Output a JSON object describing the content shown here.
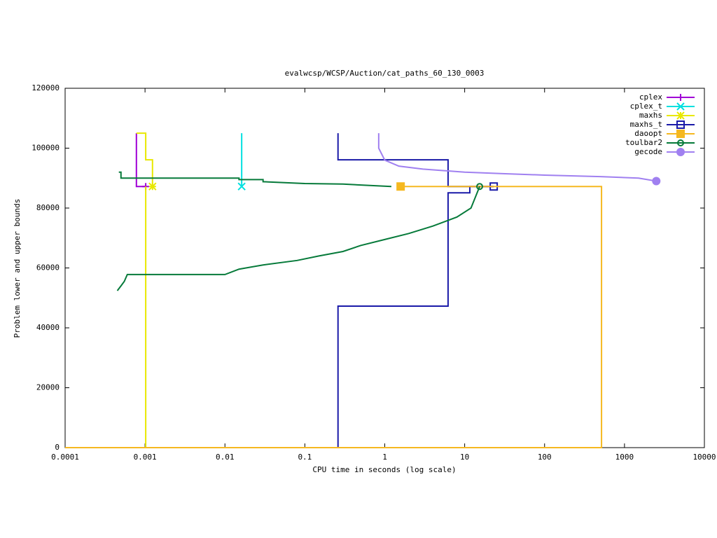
{
  "chart_data": {
    "type": "line",
    "title": "evalwcsp/WCSP/Auction/cat_paths_60_130_0003",
    "x_label": "CPU time in seconds (log scale)",
    "y_label": "Problem lower and upper bounds",
    "xlog": true,
    "xlim": [
      0.0001,
      10000
    ],
    "xticks": [
      0.0001,
      0.001,
      0.01,
      0.1,
      1,
      10,
      100,
      1000,
      10000
    ],
    "ylim": [
      0,
      120000
    ],
    "yticks": [
      0,
      20000,
      40000,
      60000,
      80000,
      100000,
      120000
    ],
    "legend": "top-right",
    "series": [
      {
        "name": "cplex",
        "color": "#a000d6",
        "marker": "plus",
        "x": [
          0.00078,
          0.00078,
          0.00102
        ],
        "values": [
          105000,
          87200,
          87200
        ]
      },
      {
        "name": "cplex_t",
        "color": "#00e0e0",
        "marker": "cross",
        "x": [
          0.0162,
          0.0162
        ],
        "values": [
          105000,
          87200
        ]
      },
      {
        "name": "maxhs",
        "color": "#e8e800",
        "marker": "star",
        "x": [
          0.0001,
          0.00102,
          0.00102,
          null,
          0.00078,
          0.00102,
          0.00102,
          0.00124,
          0.00124
        ],
        "values": [
          0,
          0,
          87200,
          null,
          105000,
          105000,
          96100,
          96100,
          87200
        ]
      },
      {
        "name": "maxhs_t",
        "color": "#1a1aa8",
        "marker": "square-open",
        "x": [
          0.26,
          0.26,
          6.2,
          6.2,
          23.1,
          null,
          0.26,
          0.26,
          6.2,
          6.2,
          11.6,
          11.6,
          23.1
        ],
        "values": [
          105000,
          96100,
          96100,
          87200,
          87200,
          null,
          0,
          47250,
          47250,
          85100,
          85100,
          87200,
          87200
        ]
      },
      {
        "name": "daoopt",
        "color": "#f5b820",
        "marker": "square-filled",
        "x": [
          0.0001,
          516,
          516,
          1.58
        ],
        "values": [
          0,
          0,
          87200,
          87200
        ]
      },
      {
        "name": "toulbar2",
        "color": "#067a3a",
        "marker": "circle-open",
        "x": [
          0.00047,
          0.0005,
          0.0005,
          0.015,
          0.015,
          0.03,
          0.03,
          0.1,
          0.3,
          1.21,
          null,
          0.00045,
          0.0005,
          0.00055,
          0.0006,
          0.01,
          0.015,
          0.03,
          0.08,
          0.15,
          0.3,
          0.5,
          1,
          2,
          4,
          8,
          12,
          15.4
        ],
        "values": [
          92000,
          92000,
          90000,
          90000,
          89500,
          89500,
          88800,
          88200,
          88000,
          87200,
          null,
          52400,
          54000,
          55500,
          57800,
          57800,
          59600,
          61000,
          62500,
          64000,
          65500,
          67500,
          69500,
          71500,
          74000,
          77000,
          80000,
          87200
        ]
      },
      {
        "name": "gecode",
        "color": "#a080f0",
        "marker": "circle-filled",
        "x": [
          0.84,
          0.84,
          1,
          1.5,
          3,
          10,
          30,
          100,
          500,
          1500,
          2500
        ],
        "values": [
          105000,
          100000,
          96000,
          94000,
          93000,
          92000,
          91500,
          91000,
          90500,
          90000,
          89000
        ]
      }
    ]
  }
}
